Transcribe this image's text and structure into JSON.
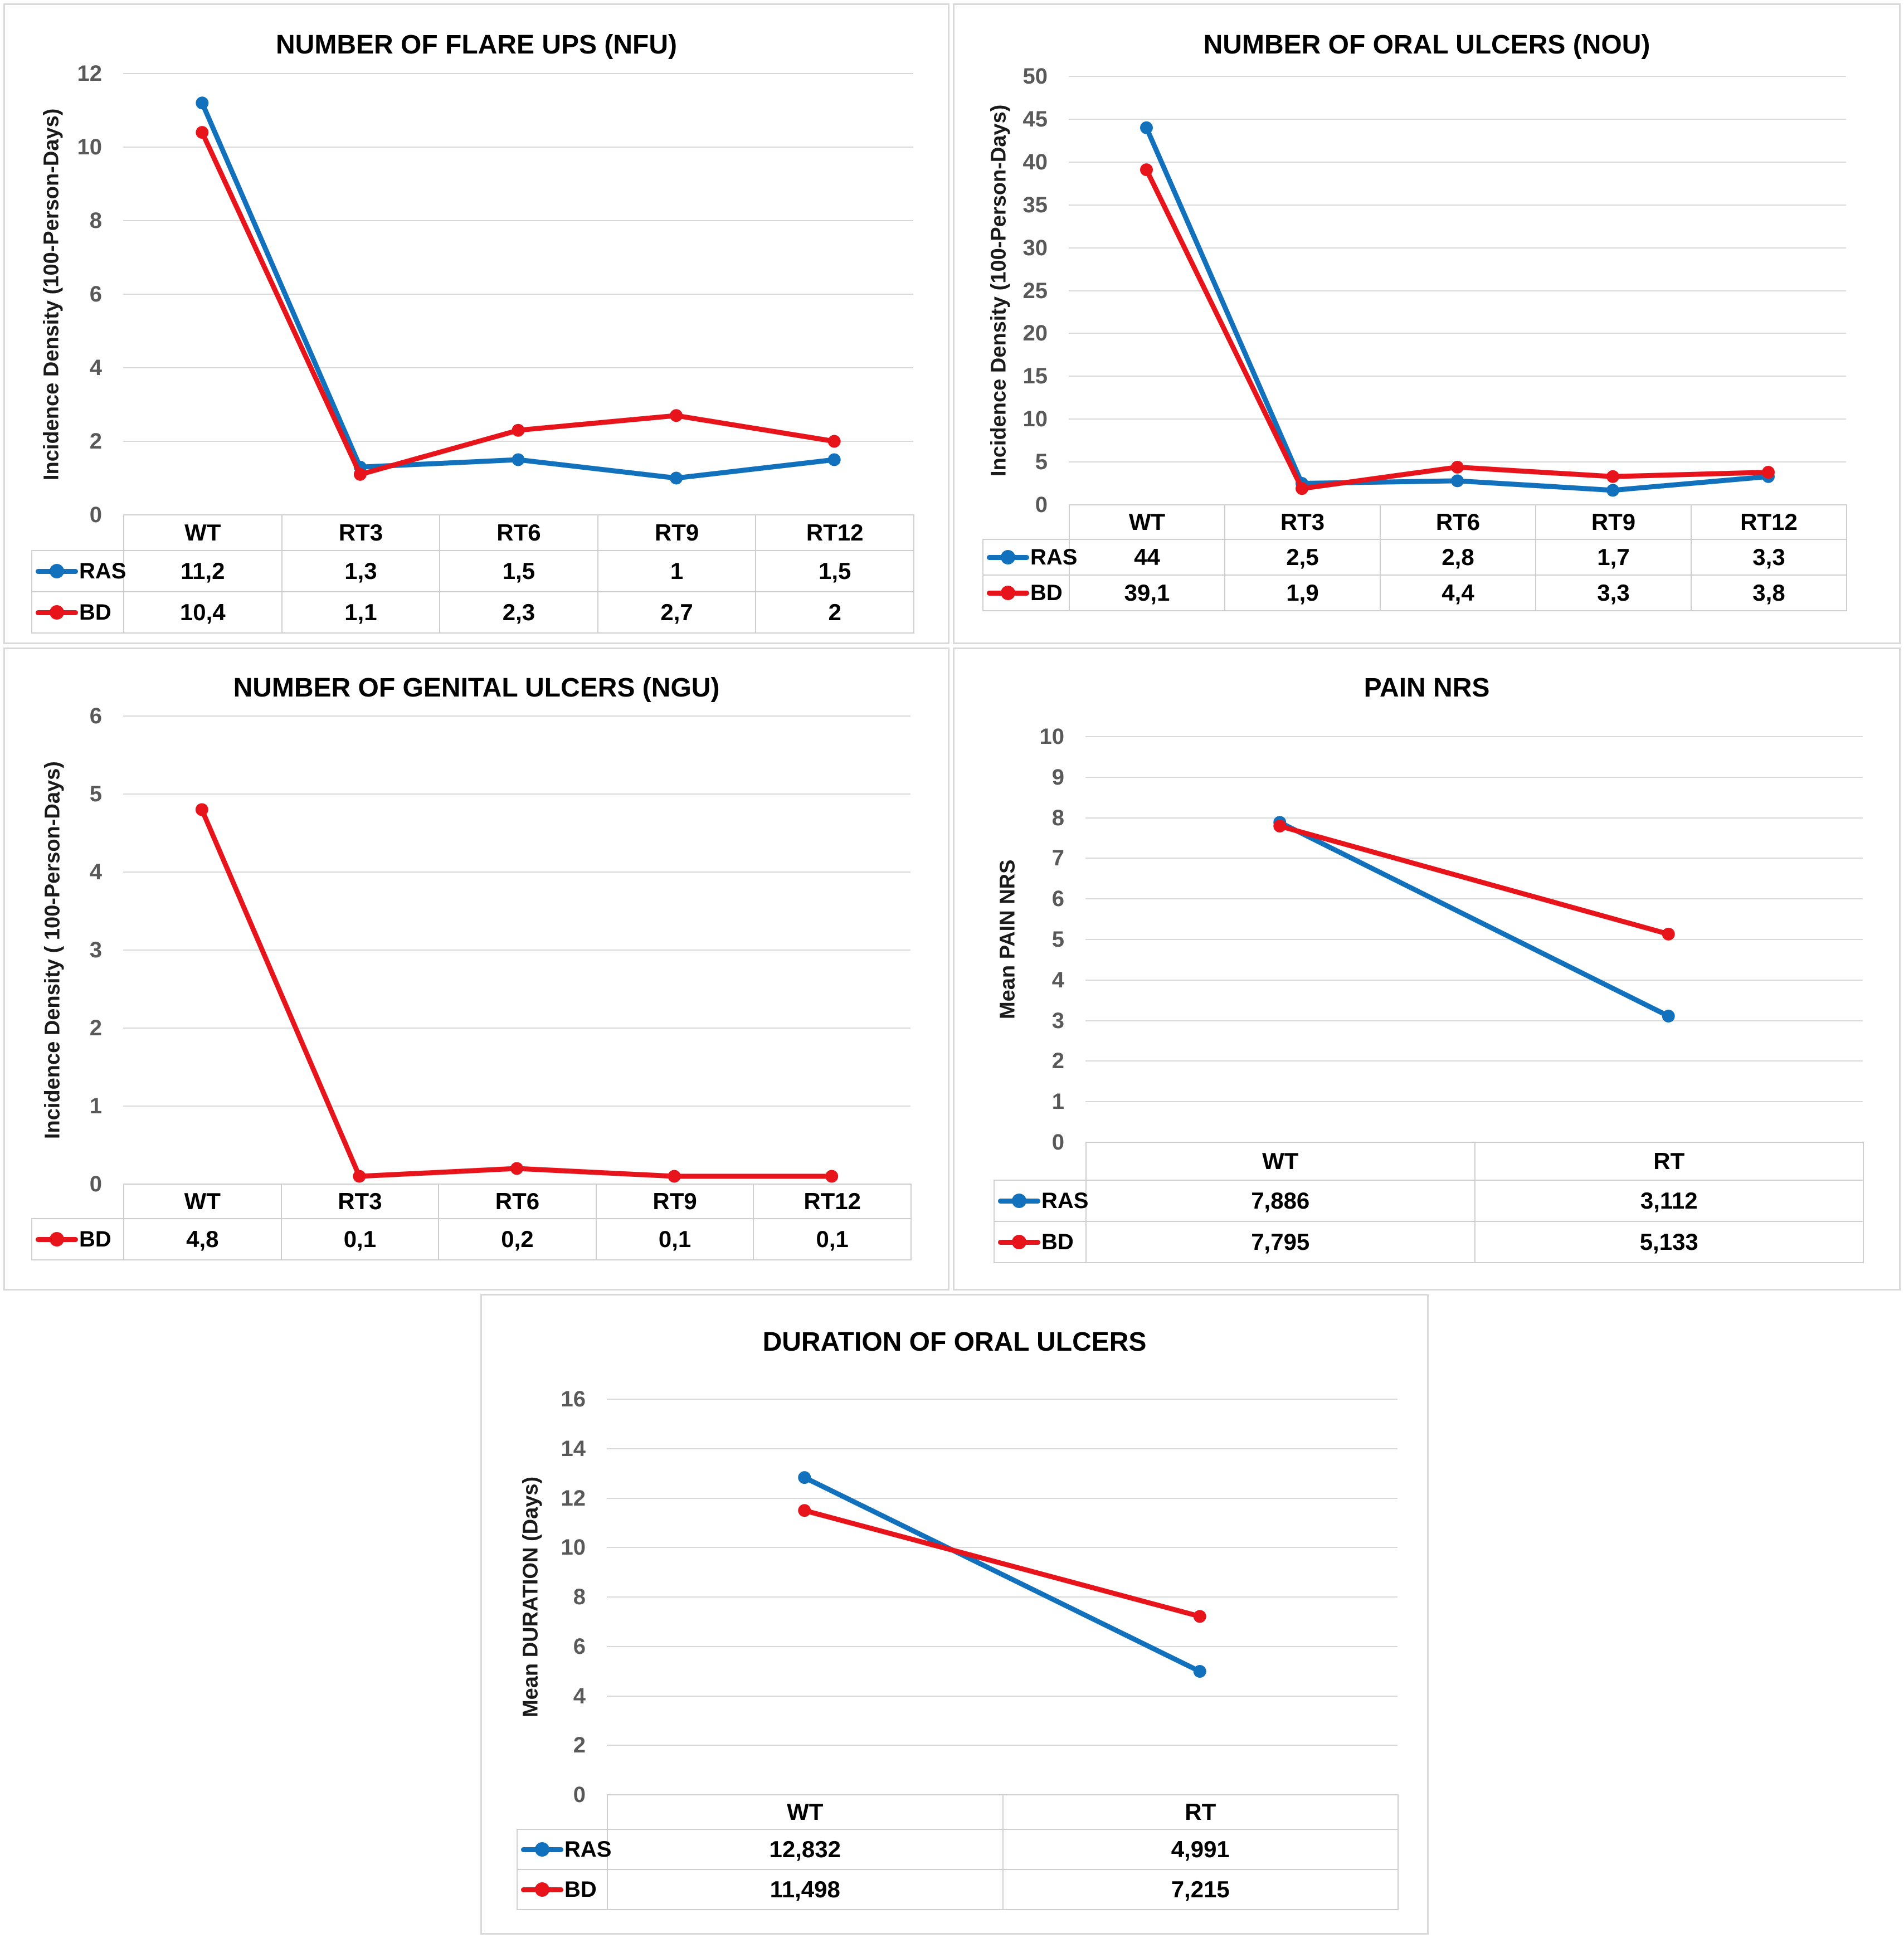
{
  "page": {
    "background": "#ffffff"
  },
  "colors": {
    "ras_blue": "#1271bc",
    "bd_red": "#e8141c",
    "gridline": "#d9d9d9",
    "tick_label": "#595959",
    "table_border": "#cfcfcf",
    "panel_border": "#d9d9d9",
    "text": "#000000"
  },
  "chart_data": [
    {
      "type": "line",
      "title": "NUMBER OF FLARE UPS (NFU)",
      "ylabel": "Incidence Density (100-Person-Days)",
      "xlabel": "",
      "categories": [
        "WT",
        "RT3",
        "RT6",
        "RT9",
        "RT12"
      ],
      "series": [
        {
          "name": "RAS",
          "color": "#1271bc",
          "values": [
            11.2,
            1.3,
            1.5,
            1,
            1.5
          ],
          "labels": [
            "11,2",
            "1,3",
            "1,5",
            "1",
            "1,5"
          ]
        },
        {
          "name": "BD",
          "color": "#e8141c",
          "values": [
            10.4,
            1.1,
            2.3,
            2.7,
            2
          ],
          "labels": [
            "10,4",
            "1,1",
            "2,3",
            "2,7",
            "2"
          ]
        }
      ],
      "ylim": [
        0,
        12
      ],
      "yticks": [
        0,
        2,
        4,
        6,
        8,
        10,
        12
      ],
      "grid": true,
      "legend_position": "table-left"
    },
    {
      "type": "line",
      "title": "NUMBER OF ORAL ULCERS (NOU)",
      "ylabel": "Incidence Density (100-Person-Days)",
      "xlabel": "",
      "categories": [
        "WT",
        "RT3",
        "RT6",
        "RT9",
        "RT12"
      ],
      "series": [
        {
          "name": "RAS",
          "color": "#1271bc",
          "values": [
            44,
            2.5,
            2.8,
            1.7,
            3.3
          ],
          "labels": [
            "44",
            "2,5",
            "2,8",
            "1,7",
            "3,3"
          ]
        },
        {
          "name": "BD",
          "color": "#e8141c",
          "values": [
            39.1,
            1.9,
            4.4,
            3.3,
            3.8
          ],
          "labels": [
            "39,1",
            "1,9",
            "4,4",
            "3,3",
            "3,8"
          ]
        }
      ],
      "ylim": [
        0,
        50
      ],
      "yticks": [
        0,
        5,
        10,
        15,
        20,
        25,
        30,
        35,
        40,
        45,
        50
      ],
      "grid": true,
      "legend_position": "table-left"
    },
    {
      "type": "line",
      "title": "NUMBER OF GENITAL ULCERS (NGU)",
      "ylabel": "Incidence Density ( 100-Person-Days)",
      "xlabel": "",
      "categories": [
        "WT",
        "RT3",
        "RT6",
        "RT9",
        "RT12"
      ],
      "series": [
        {
          "name": "BD",
          "color": "#e8141c",
          "values": [
            4.8,
            0.1,
            0.2,
            0.1,
            0.1
          ],
          "labels": [
            "4,8",
            "0,1",
            "0,2",
            "0,1",
            "0,1"
          ]
        }
      ],
      "ylim": [
        0,
        6
      ],
      "yticks": [
        0,
        1,
        2,
        3,
        4,
        5,
        6
      ],
      "grid": true,
      "legend_position": "table-left"
    },
    {
      "type": "line",
      "title": "PAIN NRS",
      "ylabel": "Mean PAIN NRS",
      "xlabel": "",
      "categories": [
        "WT",
        "RT"
      ],
      "series": [
        {
          "name": "RAS",
          "color": "#1271bc",
          "values": [
            7.886,
            3.112
          ],
          "labels": [
            "7,886",
            "3,112"
          ]
        },
        {
          "name": "BD",
          "color": "#e8141c",
          "values": [
            7.795,
            5.133
          ],
          "labels": [
            "7,795",
            "5,133"
          ]
        }
      ],
      "ylim": [
        0,
        10
      ],
      "yticks": [
        0,
        1,
        2,
        3,
        4,
        5,
        6,
        7,
        8,
        9,
        10
      ],
      "grid": true,
      "legend_position": "table-left"
    },
    {
      "type": "line",
      "title": "DURATION OF ORAL ULCERS",
      "ylabel": "Mean DURATION (Days)",
      "xlabel": "",
      "categories": [
        "WT",
        "RT"
      ],
      "series": [
        {
          "name": "RAS",
          "color": "#1271bc",
          "values": [
            12.832,
            4.991
          ],
          "labels": [
            "12,832",
            "4,991"
          ]
        },
        {
          "name": "BD",
          "color": "#e8141c",
          "values": [
            11.498,
            7.215
          ],
          "labels": [
            "11,498",
            "7,215"
          ]
        }
      ],
      "ylim": [
        0,
        16
      ],
      "yticks": [
        0,
        2,
        4,
        6,
        8,
        10,
        12,
        14,
        16
      ],
      "grid": true,
      "legend_position": "table-left"
    }
  ]
}
